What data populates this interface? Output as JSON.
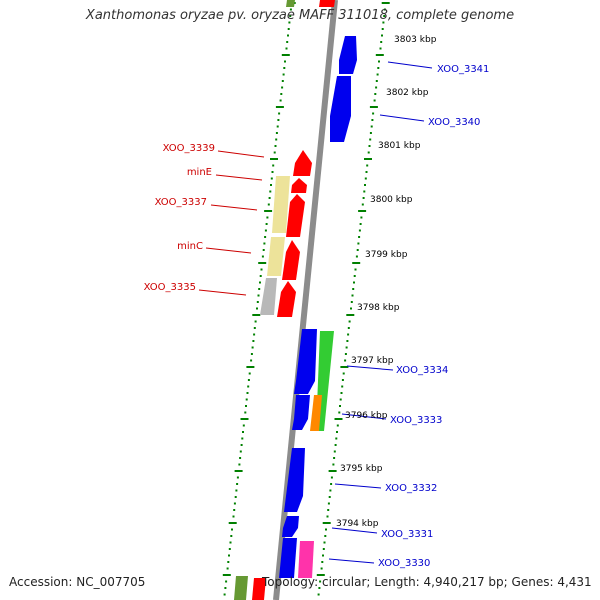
{
  "title": "Xanthomonas oryzae pv. oryzae MAFF 311018, complete genome",
  "footer": {
    "accession_label": "Accession:",
    "accession": "NC_007705",
    "topology_label": "Topology:",
    "topology": "circular",
    "length_label": "Length:",
    "length": "4,940,217 bp",
    "genes_label": "Genes:",
    "genes": "4,431"
  },
  "colors": {
    "backbone": "#8c8c8c",
    "forward_gene": "#0000ee",
    "reverse_gene": "#ff0000",
    "forward_label": "#0000cc",
    "reverse_label": "#cc0000",
    "tick": "#008000",
    "yellow_feature": "#ede39a",
    "grey_feature": "#b8b8b8",
    "green_feature": "#33cc33",
    "orange_feature": "#ff8800",
    "magenta_feature": "#ff33aa",
    "olive_feature": "#669933"
  },
  "chart_data": {
    "type": "linear-genome-map",
    "units": "kbp",
    "scale_labels": [
      "3803 kbp",
      "3802 kbp",
      "3801 kbp",
      "3800 kbp",
      "3799 kbp",
      "3798 kbp",
      "3797 kbp",
      "3796 kbp",
      "3795 kbp",
      "3794 kbp"
    ],
    "forward_genes": [
      {
        "label": "XOO_3341"
      },
      {
        "label": "XOO_3340"
      },
      {
        "label": "XOO_3334"
      },
      {
        "label": "XOO_3333"
      },
      {
        "label": "XOO_3332"
      },
      {
        "label": "XOO_3331"
      },
      {
        "label": "XOO_3330"
      }
    ],
    "reverse_genes": [
      {
        "label": "XOO_3339"
      },
      {
        "label": "minE"
      },
      {
        "label": "XOO_3337"
      },
      {
        "label": "minC"
      },
      {
        "label": "XOO_3335"
      }
    ]
  }
}
